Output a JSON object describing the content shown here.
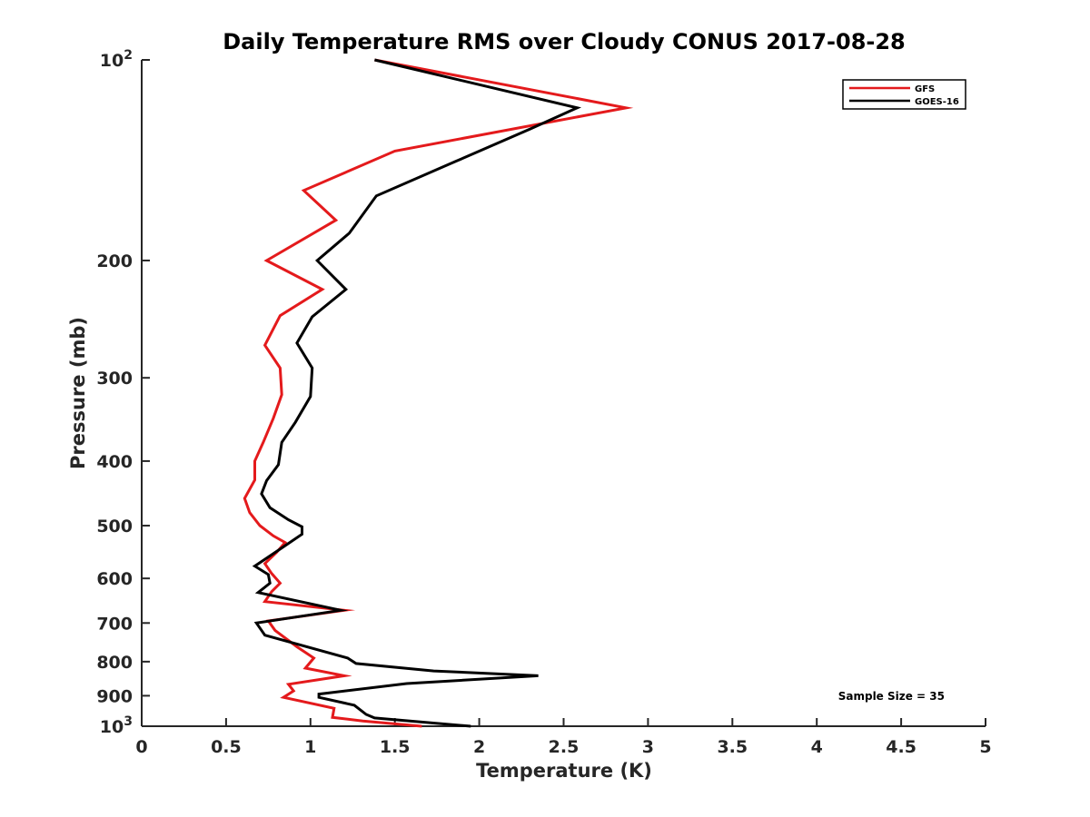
{
  "chart_data": {
    "type": "line",
    "title": "Daily Temperature RMS over Cloudy CONUS 2017-08-28",
    "xlabel": "Temperature (K)",
    "ylabel": "Pressure (mb)",
    "xlim": [
      0,
      5
    ],
    "ylim": [
      1000,
      100
    ],
    "yscale": "log",
    "y_reversed": true,
    "grid": false,
    "legend_position": "top-right",
    "x_ticks": [
      "0",
      "0.5",
      "1",
      "1.5",
      "2",
      "2.5",
      "3",
      "3.5",
      "4",
      "4.5",
      "5"
    ],
    "x_tick_values": [
      0,
      0.5,
      1,
      1.5,
      2,
      2.5,
      3,
      3.5,
      4,
      4.5,
      5
    ],
    "y_ticks": [
      {
        "value": 100,
        "base": "10",
        "exp": "2"
      },
      {
        "value": 200,
        "label": "200"
      },
      {
        "value": 300,
        "label": "300"
      },
      {
        "value": 400,
        "label": "400"
      },
      {
        "value": 500,
        "label": "500"
      },
      {
        "value": 600,
        "label": "600"
      },
      {
        "value": 700,
        "label": "700"
      },
      {
        "value": 800,
        "label": "800"
      },
      {
        "value": 900,
        "label": "900"
      },
      {
        "value": 1000,
        "base": "10",
        "exp": "3"
      }
    ],
    "series": [
      {
        "name": "GFS",
        "color": "#e41a1c",
        "points": [
          [
            1.38,
            100
          ],
          [
            2.87,
            118
          ],
          [
            1.5,
            137
          ],
          [
            0.96,
            157
          ],
          [
            1.15,
            174
          ],
          [
            0.74,
            200
          ],
          [
            1.07,
            221
          ],
          [
            0.82,
            242
          ],
          [
            0.73,
            268
          ],
          [
            0.82,
            290
          ],
          [
            0.83,
            318
          ],
          [
            0.78,
            345
          ],
          [
            0.72,
            375
          ],
          [
            0.67,
            400
          ],
          [
            0.67,
            427
          ],
          [
            0.61,
            455
          ],
          [
            0.64,
            478
          ],
          [
            0.7,
            500
          ],
          [
            0.78,
            518
          ],
          [
            0.85,
            530
          ],
          [
            0.8,
            548
          ],
          [
            0.73,
            570
          ],
          [
            0.77,
            590
          ],
          [
            0.82,
            610
          ],
          [
            0.77,
            628
          ],
          [
            0.73,
            650
          ],
          [
            1.2,
            670
          ],
          [
            0.75,
            695
          ],
          [
            0.79,
            718
          ],
          [
            0.92,
            760
          ],
          [
            1.02,
            790
          ],
          [
            0.97,
            818
          ],
          [
            1.2,
            840
          ],
          [
            0.87,
            865
          ],
          [
            0.9,
            885
          ],
          [
            0.84,
            905
          ],
          [
            1.14,
            940
          ],
          [
            1.13,
            970
          ],
          [
            1.31,
            982
          ],
          [
            1.66,
            1000
          ]
        ]
      },
      {
        "name": "GOES-16",
        "color": "#000000",
        "points": [
          [
            1.38,
            100
          ],
          [
            2.58,
            118
          ],
          [
            2.3,
            127
          ],
          [
            1.86,
            142
          ],
          [
            1.39,
            160
          ],
          [
            1.23,
            182
          ],
          [
            1.04,
            200
          ],
          [
            1.21,
            221
          ],
          [
            1.01,
            243
          ],
          [
            0.92,
            266
          ],
          [
            1.01,
            290
          ],
          [
            1.0,
            320
          ],
          [
            0.91,
            350
          ],
          [
            0.83,
            375
          ],
          [
            0.81,
            405
          ],
          [
            0.74,
            428
          ],
          [
            0.71,
            448
          ],
          [
            0.76,
            470
          ],
          [
            0.87,
            490
          ],
          [
            0.95,
            502
          ],
          [
            0.95,
            515
          ],
          [
            0.83,
            540
          ],
          [
            0.67,
            575
          ],
          [
            0.75,
            592
          ],
          [
            0.76,
            610
          ],
          [
            0.69,
            630
          ],
          [
            1.18,
            670
          ],
          [
            0.68,
            700
          ],
          [
            0.73,
            730
          ],
          [
            1.22,
            790
          ],
          [
            1.27,
            805
          ],
          [
            1.73,
            826
          ],
          [
            2.35,
            840
          ],
          [
            1.57,
            863
          ],
          [
            1.05,
            895
          ],
          [
            1.05,
            905
          ],
          [
            1.26,
            930
          ],
          [
            1.33,
            960
          ],
          [
            1.38,
            972
          ],
          [
            1.95,
            1000
          ]
        ]
      }
    ],
    "annotations": [
      {
        "text": "Sample Size = 35"
      }
    ]
  }
}
